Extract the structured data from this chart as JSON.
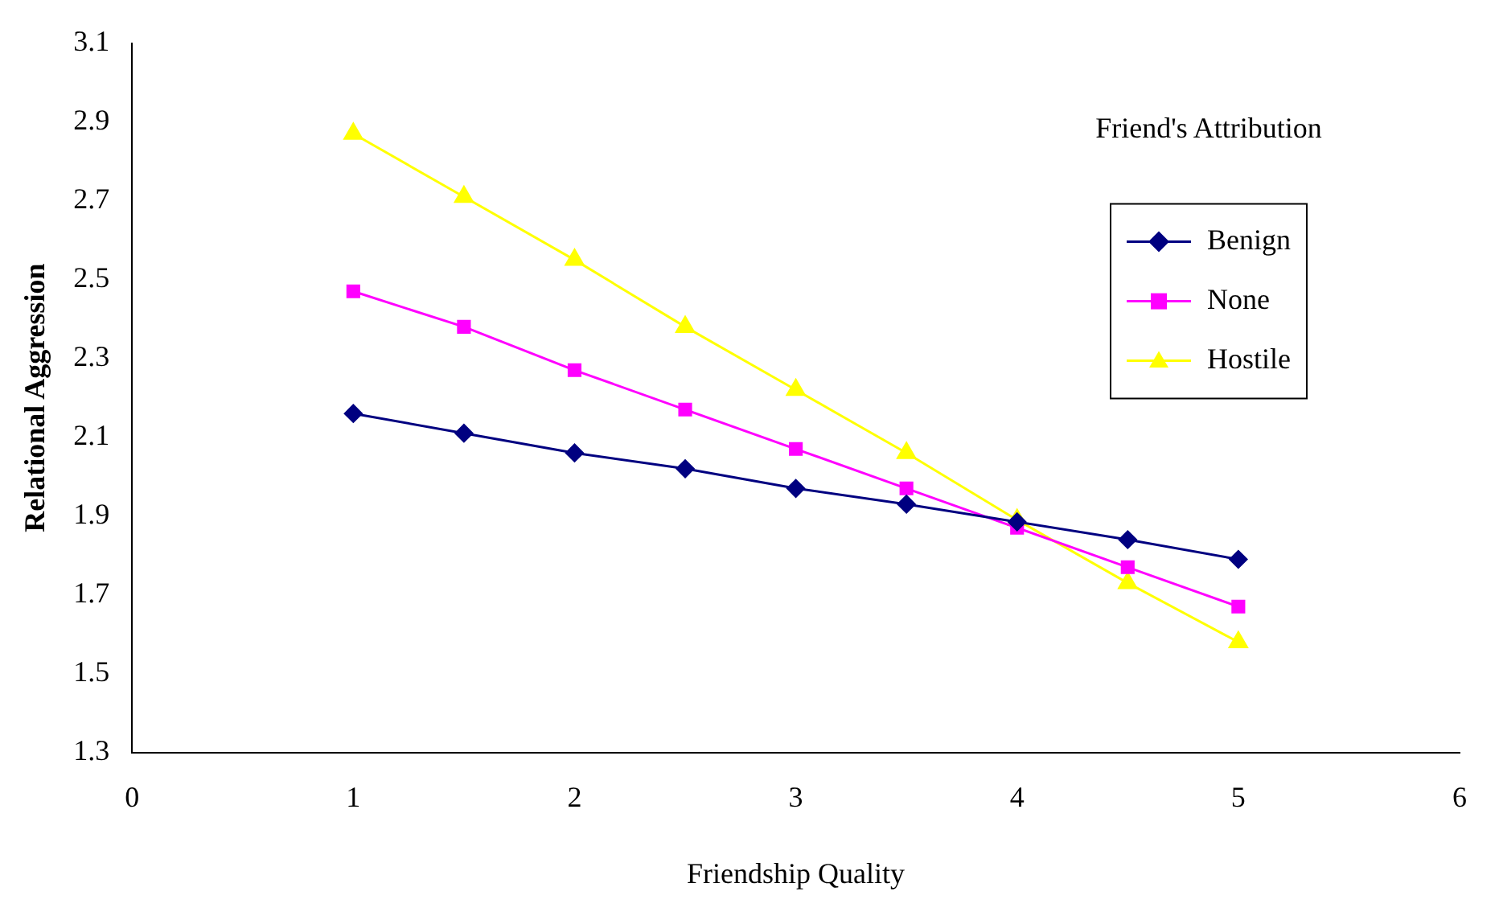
{
  "chart_data": {
    "type": "line",
    "xlabel": "Friendship Quality",
    "ylabel": "Relational Aggression",
    "legend_title": "Friend's Attribution",
    "legend": "top right",
    "grid": false,
    "x": [
      1,
      1.5,
      2,
      2.5,
      3,
      3.5,
      4,
      4.5,
      5
    ],
    "xlim": [
      0,
      6
    ],
    "xticks": [
      0,
      1,
      2,
      3,
      4,
      5,
      6
    ],
    "ylim": [
      1.3,
      3.1
    ],
    "yticks": [
      {
        "value": 1.3,
        "label": "1.3"
      },
      {
        "value": 1.5,
        "label": "1.5"
      },
      {
        "value": 1.7,
        "label": "1.7"
      },
      {
        "value": 1.9,
        "label": "1.9"
      },
      {
        "value": 2.1,
        "label": "2.1"
      },
      {
        "value": 2.3,
        "label": "2.3"
      },
      {
        "value": 2.5,
        "label": "2.5"
      },
      {
        "value": 2.7,
        "label": "2.7"
      },
      {
        "value": 2.9,
        "label": "2.9"
      },
      {
        "value": 3.1,
        "label": "3.1"
      }
    ],
    "series": [
      {
        "name": "Benign",
        "color": "#000080",
        "marker": "diamond",
        "values": [
          2.16,
          2.11,
          2.06,
          2.02,
          1.97,
          1.93,
          1.885,
          1.84,
          1.79
        ]
      },
      {
        "name": "None",
        "color": "#ff00ff",
        "marker": "square",
        "values": [
          2.47,
          2.38,
          2.27,
          2.17,
          2.07,
          1.97,
          1.87,
          1.77,
          1.67
        ]
      },
      {
        "name": "Hostile",
        "color": "#ffff00",
        "marker": "triangle",
        "values": [
          2.87,
          2.71,
          2.55,
          2.38,
          2.22,
          2.06,
          1.89,
          1.73,
          1.58
        ]
      }
    ]
  }
}
